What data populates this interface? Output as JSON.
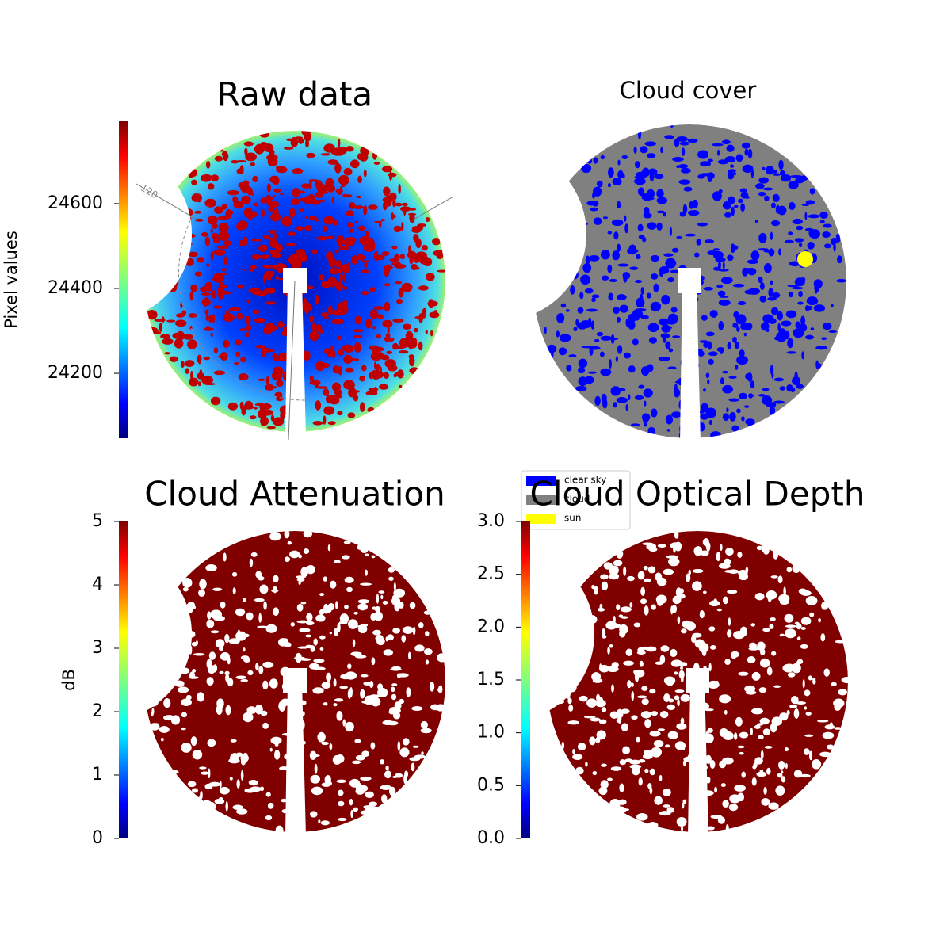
{
  "chart_data": [
    {
      "type": "image",
      "title": "Raw data",
      "annotations": [
        "120"
      ],
      "colorbar": {
        "label": "Pixel values",
        "lim": [
          24047,
          24794
        ],
        "ticks": [
          24200,
          24400,
          24600
        ],
        "cmap": "jet"
      }
    },
    {
      "type": "image",
      "title": "Cloud cover",
      "legend": [
        {
          "name": "clear sky",
          "color": "#0000ff"
        },
        {
          "name": "cloud",
          "color": "#808080"
        },
        {
          "name": "sun",
          "color": "#ffff00"
        }
      ]
    },
    {
      "type": "image",
      "title": "Cloud Attenuation",
      "color": "#800000",
      "colorbar": {
        "label": "dB",
        "lim": [
          0,
          5
        ],
        "ticks": [
          0,
          1,
          2,
          3,
          4,
          5
        ],
        "cmap": "jet"
      }
    },
    {
      "type": "image",
      "title": "Cloud Optical Depth",
      "color": "#800000",
      "colorbar": {
        "lim": [
          0,
          3
        ],
        "ticks": [
          {
            "value": 0,
            "label": "0.0"
          },
          0.5,
          {
            "value": 1,
            "label": "1.0"
          },
          1.5,
          {
            "value": 2,
            "label": "2.0"
          },
          2.5,
          {
            "value": 3,
            "label": "3.0"
          }
        ],
        "cmap": "jet"
      }
    }
  ]
}
